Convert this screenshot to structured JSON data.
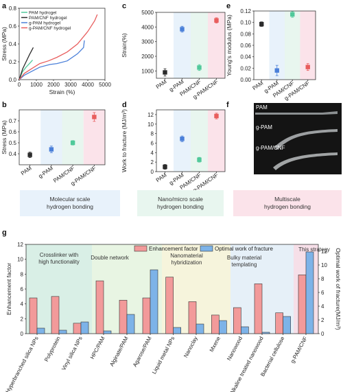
{
  "colors": {
    "pam": "#2b2b2b",
    "pamcnf": "#50c99a",
    "gpam": "#4a7fd9",
    "gpamcnf": "#e85d5d",
    "band_blue": "#e8f2fb",
    "band_green": "#e8f6ef",
    "band_pink": "#fbe3ea",
    "bar_enh": "#f29a9a",
    "bar_opt": "#7db3e8",
    "g_band1": "#d9efe6",
    "g_band2": "#e8f5e3",
    "g_band3": "#f6f4dc",
    "g_band4": "#e6f0f8",
    "g_band5": "#f6dfe8"
  },
  "panel_labels": [
    "a",
    "b",
    "c",
    "d",
    "e",
    "f",
    "g"
  ],
  "chart_data": [
    {
      "id": "a",
      "type": "line",
      "xlabel": "Strain (%)",
      "ylabel": "Stress (MPa)",
      "xlim": [
        0,
        5000
      ],
      "ylim": [
        0,
        0.8
      ],
      "xticks": [
        "0",
        "1000",
        "2000",
        "3000",
        "4000",
        "5000"
      ],
      "yticks": [
        "0.0",
        "0.2",
        "0.4",
        "0.6",
        "0.8"
      ],
      "legend_position": "top-left",
      "series": [
        {
          "name": "PAM hydrogel",
          "color": "#50c99a",
          "points": [
            [
              0,
              0
            ],
            [
              200,
              0.09
            ],
            [
              400,
              0.14
            ],
            [
              600,
              0.18
            ],
            [
              780,
              0.22
            ]
          ]
        },
        {
          "name": "PAM/CNF hydrogel",
          "color": "#2b2b2b",
          "points": [
            [
              0,
              0
            ],
            [
              200,
              0.12
            ],
            [
              400,
              0.2
            ],
            [
              600,
              0.28
            ],
            [
              820,
              0.36
            ]
          ]
        },
        {
          "name": "g-PAM hydrogel",
          "color": "#4a7fd9",
          "points": [
            [
              0,
              0
            ],
            [
              300,
              0.05
            ],
            [
              700,
              0.09
            ],
            [
              1200,
              0.14
            ],
            [
              1800,
              0.17
            ],
            [
              2200,
              0.18
            ],
            [
              2800,
              0.21
            ],
            [
              3400,
              0.29
            ],
            [
              3750,
              0.36
            ],
            [
              3800,
              0.44
            ]
          ]
        },
        {
          "name": "g-PAM/CNF hydrogel",
          "color": "#e85d5d",
          "points": [
            [
              0,
              0
            ],
            [
              300,
              0.07
            ],
            [
              700,
              0.12
            ],
            [
              1200,
              0.18
            ],
            [
              1700,
              0.21
            ],
            [
              2200,
              0.25
            ],
            [
              2800,
              0.31
            ],
            [
              3400,
              0.4
            ],
            [
              4000,
              0.54
            ],
            [
              4400,
              0.66
            ],
            [
              4550,
              0.73
            ]
          ]
        }
      ]
    },
    {
      "id": "b",
      "type": "scatter",
      "ylabel": "Stress (MPa)",
      "ylim": [
        0.3,
        0.8
      ],
      "yticks": [
        "0.4",
        "0.5",
        "0.6",
        "0.7"
      ],
      "categories": [
        "PAM",
        "g-PAM",
        "PAM/CNF",
        "g-PAM/CNF"
      ],
      "values": [
        0.39,
        0.44,
        0.5,
        0.735
      ],
      "errors": [
        0.025,
        0.03,
        0.02,
        0.04
      ]
    },
    {
      "id": "c",
      "type": "scatter",
      "ylabel": "Strain(%)",
      "ylim": [
        500,
        5000
      ],
      "yticks": [
        "1000",
        "2000",
        "3000",
        "4000",
        "5000"
      ],
      "categories": [
        "PAM",
        "g-PAM",
        "PAM/CNF",
        "g-PAM/CNF"
      ],
      "values": [
        900,
        3850,
        1230,
        4450
      ],
      "errors": [
        250,
        200,
        200,
        180
      ]
    },
    {
      "id": "d",
      "type": "scatter",
      "ylabel": "Work to fracture (MJ/m³)",
      "ylim": [
        0,
        13
      ],
      "yticks": [
        "0",
        "2",
        "4",
        "6",
        "8",
        "10",
        "12"
      ],
      "categories": [
        "PAM",
        "g-PAM",
        "PAM/CNF",
        "g-PAM/CNF"
      ],
      "values": [
        1.0,
        6.9,
        2.5,
        11.7
      ],
      "errors": [
        0.5,
        0.6,
        0.5,
        0.6
      ]
    },
    {
      "id": "e",
      "type": "scatter",
      "ylabel": "Young's modulus (MPa)",
      "ylim": [
        0,
        0.12
      ],
      "yticks": [
        "0.00",
        "0.02",
        "0.04",
        "0.06",
        "0.08",
        "0.10",
        "0.12"
      ],
      "categories": [
        "PAM",
        "g-PAM",
        "PAM/CNF",
        "g-PAM/CNF"
      ],
      "values": [
        0.097,
        0.016,
        0.114,
        0.022
      ],
      "errors": [
        0.004,
        0.009,
        0.005,
        0.006
      ]
    },
    {
      "id": "g",
      "type": "bar",
      "ylabel": "Enhancement factor",
      "y2label": "Optimal work of fracture(MJ/m³)",
      "ylim": [
        0,
        12
      ],
      "y2lim": [
        0,
        13
      ],
      "yticks": [
        "0",
        "2",
        "4",
        "6",
        "8",
        "10",
        "12"
      ],
      "y2ticks": [
        "0",
        "2",
        "4",
        "6",
        "8",
        "10",
        "12"
      ],
      "legend_position": "top-center",
      "series_names": [
        "Enhancement factor",
        "Optimal work of fracture"
      ],
      "categories": [
        "Hyperbranched silica NPs",
        "Polyprotein",
        "Vinyl silica NPs",
        "HPC/PAM",
        "Alginate/PAM",
        "Agarose/PAM",
        "Liquid metal NPs",
        "Nanoclay",
        "Mxene",
        "Nanowood",
        "Alkaline treated nanowood",
        "Bacterial cellulose",
        "g-PAM/CNF"
      ],
      "enhancement": [
        4.8,
        5.0,
        1.4,
        7.1,
        4.5,
        4.8,
        7.6,
        4.3,
        2.5,
        3.5,
        6.7,
        2.8,
        7.9
      ],
      "work": [
        0.8,
        0.5,
        1.7,
        0.4,
        2.8,
        9.3,
        0.9,
        1.4,
        1.9,
        1.0,
        0.2,
        2.5,
        11.9
      ],
      "group_sizes": [
        3,
        3,
        3,
        3,
        1
      ]
    }
  ],
  "band_labels": {
    "molecular": "Molecular scale hydrogen bonding",
    "nano": "Nano/micro scale hydrogen bonding",
    "multi": "Multiscale hydrogen bonding"
  },
  "band_lines": {
    "molecular": [
      "Molecular scale",
      "hydrogen bonding"
    ],
    "nano": [
      "Nano/micro scale",
      "hydrogen bonding"
    ],
    "multi": [
      "Multiscale",
      "hydrogen bonding"
    ]
  },
  "photo_labels": [
    "PAM",
    "g-PAM",
    "g-PAM/CNF"
  ],
  "g_groups": [
    [
      "Crosslinker with",
      "high functionality"
    ],
    [
      "Double network"
    ],
    [
      "Nanomaterial",
      "hybridization"
    ],
    [
      "Bulky material",
      "templating"
    ],
    [
      "This strategy"
    ]
  ]
}
